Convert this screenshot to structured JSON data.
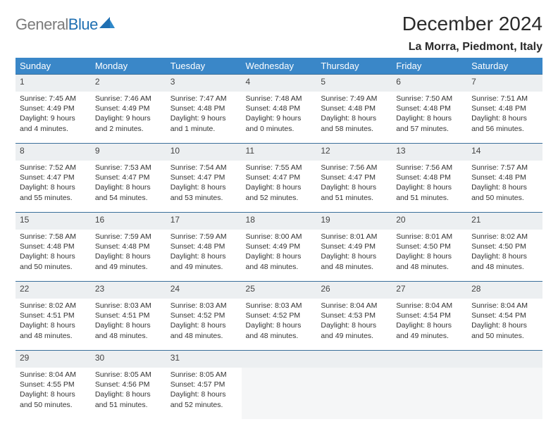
{
  "logo": {
    "text_gray": "General",
    "text_blue": "Blue"
  },
  "title": "December 2024",
  "location": "La Morra, Piedmont, Italy",
  "colors": {
    "header_bg": "#3a87c8",
    "header_fg": "#ffffff",
    "daynum_bg": "#eceff1",
    "row_divider": "#3a6f9a",
    "text": "#333333",
    "logo_gray": "#7b7b7b",
    "logo_blue": "#1f6fb2"
  },
  "weekdays": [
    "Sunday",
    "Monday",
    "Tuesday",
    "Wednesday",
    "Thursday",
    "Friday",
    "Saturday"
  ],
  "weeks": [
    [
      {
        "n": "1",
        "sr": "Sunrise: 7:45 AM",
        "ss": "Sunset: 4:49 PM",
        "d1": "Daylight: 9 hours",
        "d2": "and 4 minutes."
      },
      {
        "n": "2",
        "sr": "Sunrise: 7:46 AM",
        "ss": "Sunset: 4:49 PM",
        "d1": "Daylight: 9 hours",
        "d2": "and 2 minutes."
      },
      {
        "n": "3",
        "sr": "Sunrise: 7:47 AM",
        "ss": "Sunset: 4:48 PM",
        "d1": "Daylight: 9 hours",
        "d2": "and 1 minute."
      },
      {
        "n": "4",
        "sr": "Sunrise: 7:48 AM",
        "ss": "Sunset: 4:48 PM",
        "d1": "Daylight: 9 hours",
        "d2": "and 0 minutes."
      },
      {
        "n": "5",
        "sr": "Sunrise: 7:49 AM",
        "ss": "Sunset: 4:48 PM",
        "d1": "Daylight: 8 hours",
        "d2": "and 58 minutes."
      },
      {
        "n": "6",
        "sr": "Sunrise: 7:50 AM",
        "ss": "Sunset: 4:48 PM",
        "d1": "Daylight: 8 hours",
        "d2": "and 57 minutes."
      },
      {
        "n": "7",
        "sr": "Sunrise: 7:51 AM",
        "ss": "Sunset: 4:48 PM",
        "d1": "Daylight: 8 hours",
        "d2": "and 56 minutes."
      }
    ],
    [
      {
        "n": "8",
        "sr": "Sunrise: 7:52 AM",
        "ss": "Sunset: 4:47 PM",
        "d1": "Daylight: 8 hours",
        "d2": "and 55 minutes."
      },
      {
        "n": "9",
        "sr": "Sunrise: 7:53 AM",
        "ss": "Sunset: 4:47 PM",
        "d1": "Daylight: 8 hours",
        "d2": "and 54 minutes."
      },
      {
        "n": "10",
        "sr": "Sunrise: 7:54 AM",
        "ss": "Sunset: 4:47 PM",
        "d1": "Daylight: 8 hours",
        "d2": "and 53 minutes."
      },
      {
        "n": "11",
        "sr": "Sunrise: 7:55 AM",
        "ss": "Sunset: 4:47 PM",
        "d1": "Daylight: 8 hours",
        "d2": "and 52 minutes."
      },
      {
        "n": "12",
        "sr": "Sunrise: 7:56 AM",
        "ss": "Sunset: 4:47 PM",
        "d1": "Daylight: 8 hours",
        "d2": "and 51 minutes."
      },
      {
        "n": "13",
        "sr": "Sunrise: 7:56 AM",
        "ss": "Sunset: 4:48 PM",
        "d1": "Daylight: 8 hours",
        "d2": "and 51 minutes."
      },
      {
        "n": "14",
        "sr": "Sunrise: 7:57 AM",
        "ss": "Sunset: 4:48 PM",
        "d1": "Daylight: 8 hours",
        "d2": "and 50 minutes."
      }
    ],
    [
      {
        "n": "15",
        "sr": "Sunrise: 7:58 AM",
        "ss": "Sunset: 4:48 PM",
        "d1": "Daylight: 8 hours",
        "d2": "and 50 minutes."
      },
      {
        "n": "16",
        "sr": "Sunrise: 7:59 AM",
        "ss": "Sunset: 4:48 PM",
        "d1": "Daylight: 8 hours",
        "d2": "and 49 minutes."
      },
      {
        "n": "17",
        "sr": "Sunrise: 7:59 AM",
        "ss": "Sunset: 4:48 PM",
        "d1": "Daylight: 8 hours",
        "d2": "and 49 minutes."
      },
      {
        "n": "18",
        "sr": "Sunrise: 8:00 AM",
        "ss": "Sunset: 4:49 PM",
        "d1": "Daylight: 8 hours",
        "d2": "and 48 minutes."
      },
      {
        "n": "19",
        "sr": "Sunrise: 8:01 AM",
        "ss": "Sunset: 4:49 PM",
        "d1": "Daylight: 8 hours",
        "d2": "and 48 minutes."
      },
      {
        "n": "20",
        "sr": "Sunrise: 8:01 AM",
        "ss": "Sunset: 4:50 PM",
        "d1": "Daylight: 8 hours",
        "d2": "and 48 minutes."
      },
      {
        "n": "21",
        "sr": "Sunrise: 8:02 AM",
        "ss": "Sunset: 4:50 PM",
        "d1": "Daylight: 8 hours",
        "d2": "and 48 minutes."
      }
    ],
    [
      {
        "n": "22",
        "sr": "Sunrise: 8:02 AM",
        "ss": "Sunset: 4:51 PM",
        "d1": "Daylight: 8 hours",
        "d2": "and 48 minutes."
      },
      {
        "n": "23",
        "sr": "Sunrise: 8:03 AM",
        "ss": "Sunset: 4:51 PM",
        "d1": "Daylight: 8 hours",
        "d2": "and 48 minutes."
      },
      {
        "n": "24",
        "sr": "Sunrise: 8:03 AM",
        "ss": "Sunset: 4:52 PM",
        "d1": "Daylight: 8 hours",
        "d2": "and 48 minutes."
      },
      {
        "n": "25",
        "sr": "Sunrise: 8:03 AM",
        "ss": "Sunset: 4:52 PM",
        "d1": "Daylight: 8 hours",
        "d2": "and 48 minutes."
      },
      {
        "n": "26",
        "sr": "Sunrise: 8:04 AM",
        "ss": "Sunset: 4:53 PM",
        "d1": "Daylight: 8 hours",
        "d2": "and 49 minutes."
      },
      {
        "n": "27",
        "sr": "Sunrise: 8:04 AM",
        "ss": "Sunset: 4:54 PM",
        "d1": "Daylight: 8 hours",
        "d2": "and 49 minutes."
      },
      {
        "n": "28",
        "sr": "Sunrise: 8:04 AM",
        "ss": "Sunset: 4:54 PM",
        "d1": "Daylight: 8 hours",
        "d2": "and 50 minutes."
      }
    ],
    [
      {
        "n": "29",
        "sr": "Sunrise: 8:04 AM",
        "ss": "Sunset: 4:55 PM",
        "d1": "Daylight: 8 hours",
        "d2": "and 50 minutes."
      },
      {
        "n": "30",
        "sr": "Sunrise: 8:05 AM",
        "ss": "Sunset: 4:56 PM",
        "d1": "Daylight: 8 hours",
        "d2": "and 51 minutes."
      },
      {
        "n": "31",
        "sr": "Sunrise: 8:05 AM",
        "ss": "Sunset: 4:57 PM",
        "d1": "Daylight: 8 hours",
        "d2": "and 52 minutes."
      },
      null,
      null,
      null,
      null
    ]
  ]
}
